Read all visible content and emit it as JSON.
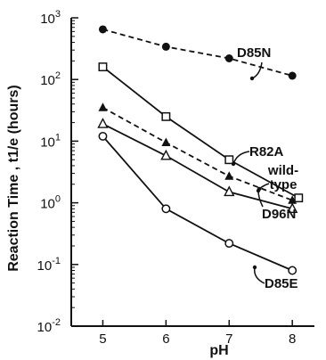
{
  "chart_data": {
    "type": "line",
    "xlabel": "pH",
    "ylabel": "Reaction Time , t1/e (hours)",
    "y_scale": "log",
    "xlim": [
      4.5,
      8.35
    ],
    "ylim": [
      0.01,
      1000
    ],
    "x_ticks": [
      "5",
      "6",
      "7",
      "8"
    ],
    "x_tick_values": [
      5,
      6,
      7,
      8
    ],
    "y_ticks": [
      {
        "base": "10",
        "exp": "3",
        "value": 1000
      },
      {
        "base": "10",
        "exp": "2",
        "value": 100
      },
      {
        "base": "10",
        "exp": "1",
        "value": 10
      },
      {
        "base": "10",
        "exp": "0",
        "value": 1
      },
      {
        "base": "10",
        "exp": "-1",
        "value": 0.1
      },
      {
        "base": "10",
        "exp": "-2",
        "value": 0.01
      }
    ],
    "grid": false,
    "legend": "inline labels with arrows",
    "series": [
      {
        "name": "D85N",
        "marker": "filled-circle",
        "line": "dashed",
        "points": [
          [
            5,
            650
          ],
          [
            6,
            340
          ],
          [
            7,
            220
          ],
          [
            8,
            115
          ]
        ]
      },
      {
        "name": "R82A",
        "marker": "open-square",
        "line": "solid",
        "points": [
          [
            5,
            160
          ],
          [
            6,
            25
          ],
          [
            7,
            5
          ],
          [
            8.1,
            1.2
          ]
        ]
      },
      {
        "name": "wild-type",
        "label_lines": [
          "wild-",
          "type"
        ],
        "marker": "filled-triangle",
        "line": "dashed",
        "points": [
          [
            5,
            35
          ],
          [
            6,
            9.5
          ],
          [
            7,
            2.7
          ],
          [
            8,
            1.1
          ]
        ]
      },
      {
        "name": "D96N",
        "marker": "open-triangle",
        "line": "solid",
        "points": [
          [
            5,
            19
          ],
          [
            6,
            5.8
          ],
          [
            7,
            1.5
          ],
          [
            8,
            0.8
          ]
        ]
      },
      {
        "name": "D85E",
        "marker": "open-circle",
        "line": "solid",
        "points": [
          [
            5,
            12
          ],
          [
            6,
            0.8
          ],
          [
            7,
            0.22
          ],
          [
            8,
            0.08
          ]
        ]
      }
    ]
  }
}
